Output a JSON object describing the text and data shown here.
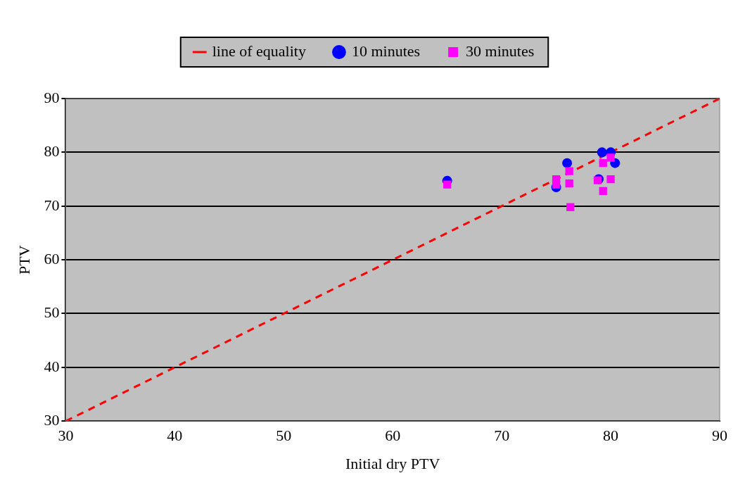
{
  "chart_data": {
    "type": "scatter",
    "xlabel": "Initial dry PTV",
    "ylabel": "PTV",
    "xlim": [
      30,
      90
    ],
    "xticks": [
      30,
      40,
      50,
      60,
      70,
      80,
      90
    ],
    "ylim": [
      30,
      90
    ],
    "yticks": [
      30,
      40,
      50,
      60,
      70,
      80,
      90
    ],
    "grid": "y",
    "legend": "top",
    "series": [
      {
        "name": "line of equality",
        "type": "line",
        "color": "#ff0000",
        "line_style": "dashed",
        "marker": "none",
        "x": [
          30,
          90
        ],
        "values": [
          30,
          90
        ]
      },
      {
        "name": "10 minutes",
        "color": "#0000ff",
        "marker": "circle",
        "x": [
          65,
          76,
          75,
          79.2,
          80,
          80.4,
          78.9
        ],
        "values": [
          74.7,
          78,
          73.5,
          80,
          80,
          78,
          75
        ]
      },
      {
        "name": "30 minutes",
        "color": "#ff00ff",
        "marker": "square",
        "x": [
          65,
          75,
          75,
          76.2,
          76.2,
          76.3,
          79.3,
          80,
          78.8,
          80,
          79.3
        ],
        "values": [
          74,
          75,
          74,
          76.5,
          74.2,
          69.8,
          78,
          79,
          74.8,
          75,
          72.8
        ]
      }
    ]
  }
}
